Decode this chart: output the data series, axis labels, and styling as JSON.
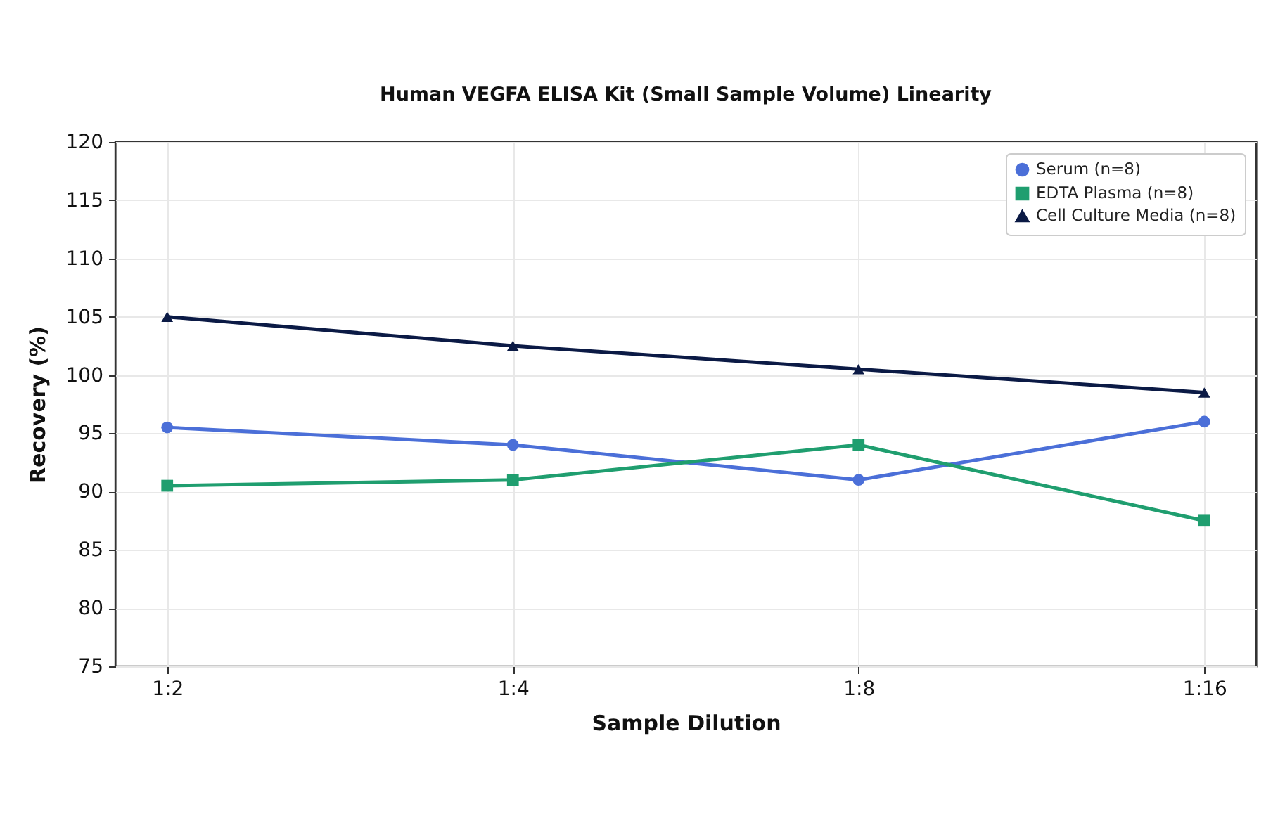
{
  "chart_data": {
    "type": "line",
    "title": "Human VEGFA ELISA Kit (Small Sample Volume) Linearity",
    "xlabel": "Sample Dilution",
    "ylabel": "Recovery (%)",
    "categories": [
      "1:2",
      "1:4",
      "1:8",
      "1:16"
    ],
    "series": [
      {
        "name": "Serum (n=8)",
        "color": "#4b6fd8",
        "marker": "circle",
        "values": [
          95.5,
          94,
          91,
          96
        ]
      },
      {
        "name": "EDTA Plasma (n=8)",
        "color": "#1f9e6f",
        "marker": "square",
        "values": [
          90.5,
          91,
          94,
          87.5
        ]
      },
      {
        "name": "Cell Culture Media (n=8)",
        "color": "#0b1a45",
        "marker": "triangle",
        "values": [
          105,
          102.5,
          100.5,
          98.5
        ]
      }
    ],
    "ylim": [
      75,
      120
    ],
    "yticks": [
      75,
      80,
      85,
      90,
      95,
      100,
      105,
      110,
      115,
      120
    ],
    "grid": true,
    "legend": "top right"
  }
}
